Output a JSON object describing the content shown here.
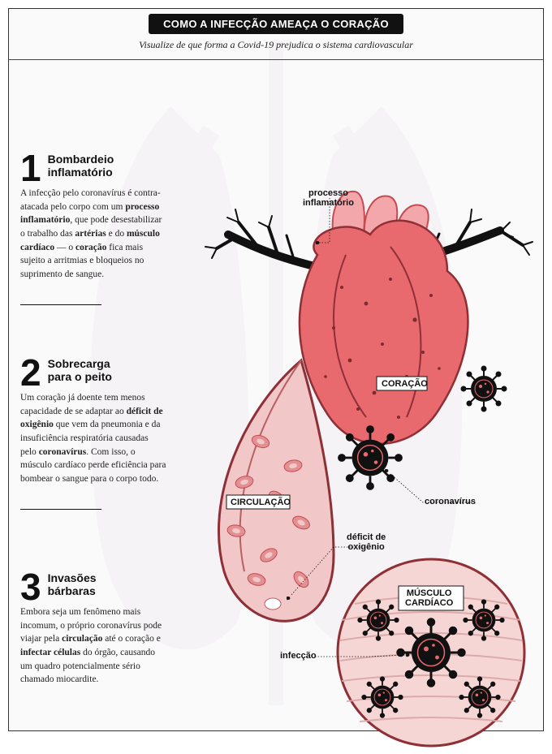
{
  "header": {
    "title": "COMO A INFECÇÃO AMEAÇA O CORAÇÃO",
    "subtitle": "Visualize de que forma a Covid-19 prejudica o sistema cardiovascular"
  },
  "items": [
    {
      "num": "1",
      "heading_l1": "Bombardeio",
      "heading_l2": "inflamatório",
      "body_html": "A infecção pelo coronavírus é contra-atacada pelo corpo com um <b>processo inflamatório</b>, que pode desestabilizar o trabalho das <b>artérias</b> e do <b>músculo cardíaco</b> — o <b>coração</b> fica mais sujeito a arritmias e bloqueios no suprimento de sangue."
    },
    {
      "num": "2",
      "heading_l1": "Sobrecarga",
      "heading_l2": "para o peito",
      "body_html": "Um coração já doente tem menos capacidade de se adaptar ao <b>déficit de oxigênio</b> que vem da pneumonia e da insuficiência respiratória causadas pelo <b>coronavírus</b>. Com isso, o músculo cardíaco perde eficiência para bombear o sangue para o corpo todo."
    },
    {
      "num": "3",
      "heading_l1": "Invasões",
      "heading_l2": "bárbaras",
      "body_html": "Embora seja um fenômeno mais incomum, o próprio coronavírus pode viajar pela <b>circulação</b> até o coração e <b>infectar células</b> do órgão, causando um quadro potencialmente sério chamado miocardite."
    }
  ],
  "labels": {
    "processo_l1": "processo",
    "processo_l2": "inflamatório",
    "coracao": "CORAÇÃO",
    "coronavirus": "coronavírus",
    "circulacao": "CIRCULAÇÃO",
    "deficit_l1": "déficit de",
    "deficit_l2": "oxigênio",
    "musculo_l1": "MÚSCULO",
    "musculo_l2": "CARDÍACO",
    "infeccao": "infecção"
  },
  "palette": {
    "heart_fill": "#e86a6e",
    "heart_dark": "#c64a52",
    "heart_light": "#f4a7ab",
    "vessel_fill": "#f2c7c8",
    "vessel_stroke": "#b86064",
    "rbc": "#e39092",
    "muscle_fill": "#f6d6d4",
    "muscle_stroke": "#c9898b",
    "virus": "#111111",
    "virus_accent": "#e86a6e",
    "branch": "#111111",
    "bg_lung": "#b8a8c2"
  }
}
